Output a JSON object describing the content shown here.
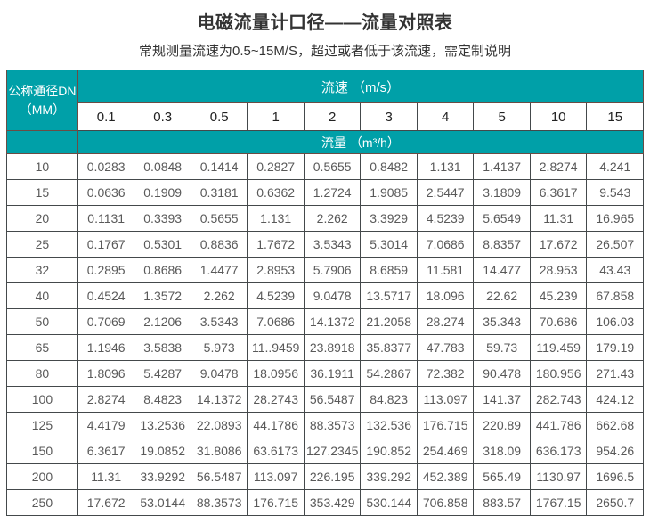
{
  "page": {
    "title": "电磁流量计口径——流量对照表",
    "subtitle": "常规测量流速为0.5~15M/S，超过或者低于该流速，需定制说明"
  },
  "colors": {
    "header_teal": "#00a0a8",
    "header_text": "#ffffff",
    "column_header_text": "#222222",
    "data_text": "#595959",
    "border_dark": "#44494b",
    "border_teal_inner": "#6b4c44",
    "title_text": "#333333"
  },
  "chart_data": {
    "type": "table",
    "title": "电磁流量计口径——流量对照表",
    "subtitle": "常规测量流速为0.5~15M/S，超过或者低于该流速，需定制说明",
    "corner_header": {
      "line1": "公称通径DN",
      "line2": "（MM）"
    },
    "velocity_header": "流速 （m/s）",
    "flow_header": "流量 （m³/h）",
    "velocity_columns": [
      "0.1",
      "0.3",
      "0.5",
      "1",
      "2",
      "3",
      "4",
      "5",
      "10",
      "15"
    ],
    "rows": [
      {
        "dn": "10",
        "values": [
          "0.0283",
          "0.0848",
          "0.1414",
          "0.2827",
          "0.5655",
          "0.8482",
          "1.131",
          "1.4137",
          "2.8274",
          "4.241"
        ]
      },
      {
        "dn": "15",
        "values": [
          "0.0636",
          "0.1909",
          "0.3181",
          "0.6362",
          "1.2724",
          "1.9085",
          "2.5447",
          "3.1809",
          "6.3617",
          "9.543"
        ]
      },
      {
        "dn": "20",
        "values": [
          "0.1131",
          "0.3393",
          "0.5655",
          "1.131",
          "2.262",
          "3.3929",
          "4.5239",
          "5.6549",
          "11.31",
          "16.965"
        ]
      },
      {
        "dn": "25",
        "values": [
          "0.1767",
          "0.5301",
          "0.8836",
          "1.7672",
          "3.5343",
          "5.3014",
          "7.0686",
          "8.8357",
          "17.672",
          "26.507"
        ]
      },
      {
        "dn": "32",
        "values": [
          "0.2895",
          "0.8686",
          "1.4477",
          "2.8953",
          "5.7906",
          "8.6859",
          "11.581",
          "14.477",
          "28.953",
          "43.43"
        ]
      },
      {
        "dn": "40",
        "values": [
          "0.4524",
          "1.3572",
          "2.262",
          "4.5239",
          "9.0478",
          "13.5717",
          "18.096",
          "22.62",
          "45.239",
          "67.858"
        ]
      },
      {
        "dn": "50",
        "values": [
          "0.7069",
          "2.1206",
          "3.5343",
          "7.0686",
          "14.1372",
          "21.2058",
          "28.274",
          "35.343",
          "70.686",
          "106.03"
        ]
      },
      {
        "dn": "65",
        "values": [
          "1.1946",
          "3.5838",
          "5.973",
          "11..9459",
          "23.8918",
          "35.8377",
          "47.783",
          "59.73",
          "119.459",
          "179.19"
        ]
      },
      {
        "dn": "80",
        "values": [
          "1.8096",
          "5.4287",
          "9.0478",
          "18.0956",
          "36.1911",
          "54.2867",
          "72.382",
          "90.478",
          "180.956",
          "271.43"
        ]
      },
      {
        "dn": "100",
        "values": [
          "2.8274",
          "8.4823",
          "14.1372",
          "28.2743",
          "56.5487",
          "84.823",
          "113.097",
          "141.37",
          "282.743",
          "424.12"
        ]
      },
      {
        "dn": "125",
        "values": [
          "4.4179",
          "13.2536",
          "22.0893",
          "44.1786",
          "88.3573",
          "132.536",
          "176.715",
          "220.89",
          "441.786",
          "662.68"
        ]
      },
      {
        "dn": "150",
        "values": [
          "6.3617",
          "19.0852",
          "31.8086",
          "63.6173",
          "127.2345",
          "190.852",
          "254.469",
          "318.09",
          "636.173",
          "954.26"
        ]
      },
      {
        "dn": "200",
        "values": [
          "11.31",
          "33.9292",
          "56.5487",
          "113.097",
          "226.195",
          "339.292",
          "452.389",
          "565.49",
          "1130.97",
          "1696.5"
        ]
      },
      {
        "dn": "250",
        "values": [
          "17.672",
          "53.0144",
          "88.3573",
          "176.715",
          "353.429",
          "530.144",
          "706.858",
          "883.57",
          "1767.15",
          "2650.7"
        ]
      }
    ]
  }
}
